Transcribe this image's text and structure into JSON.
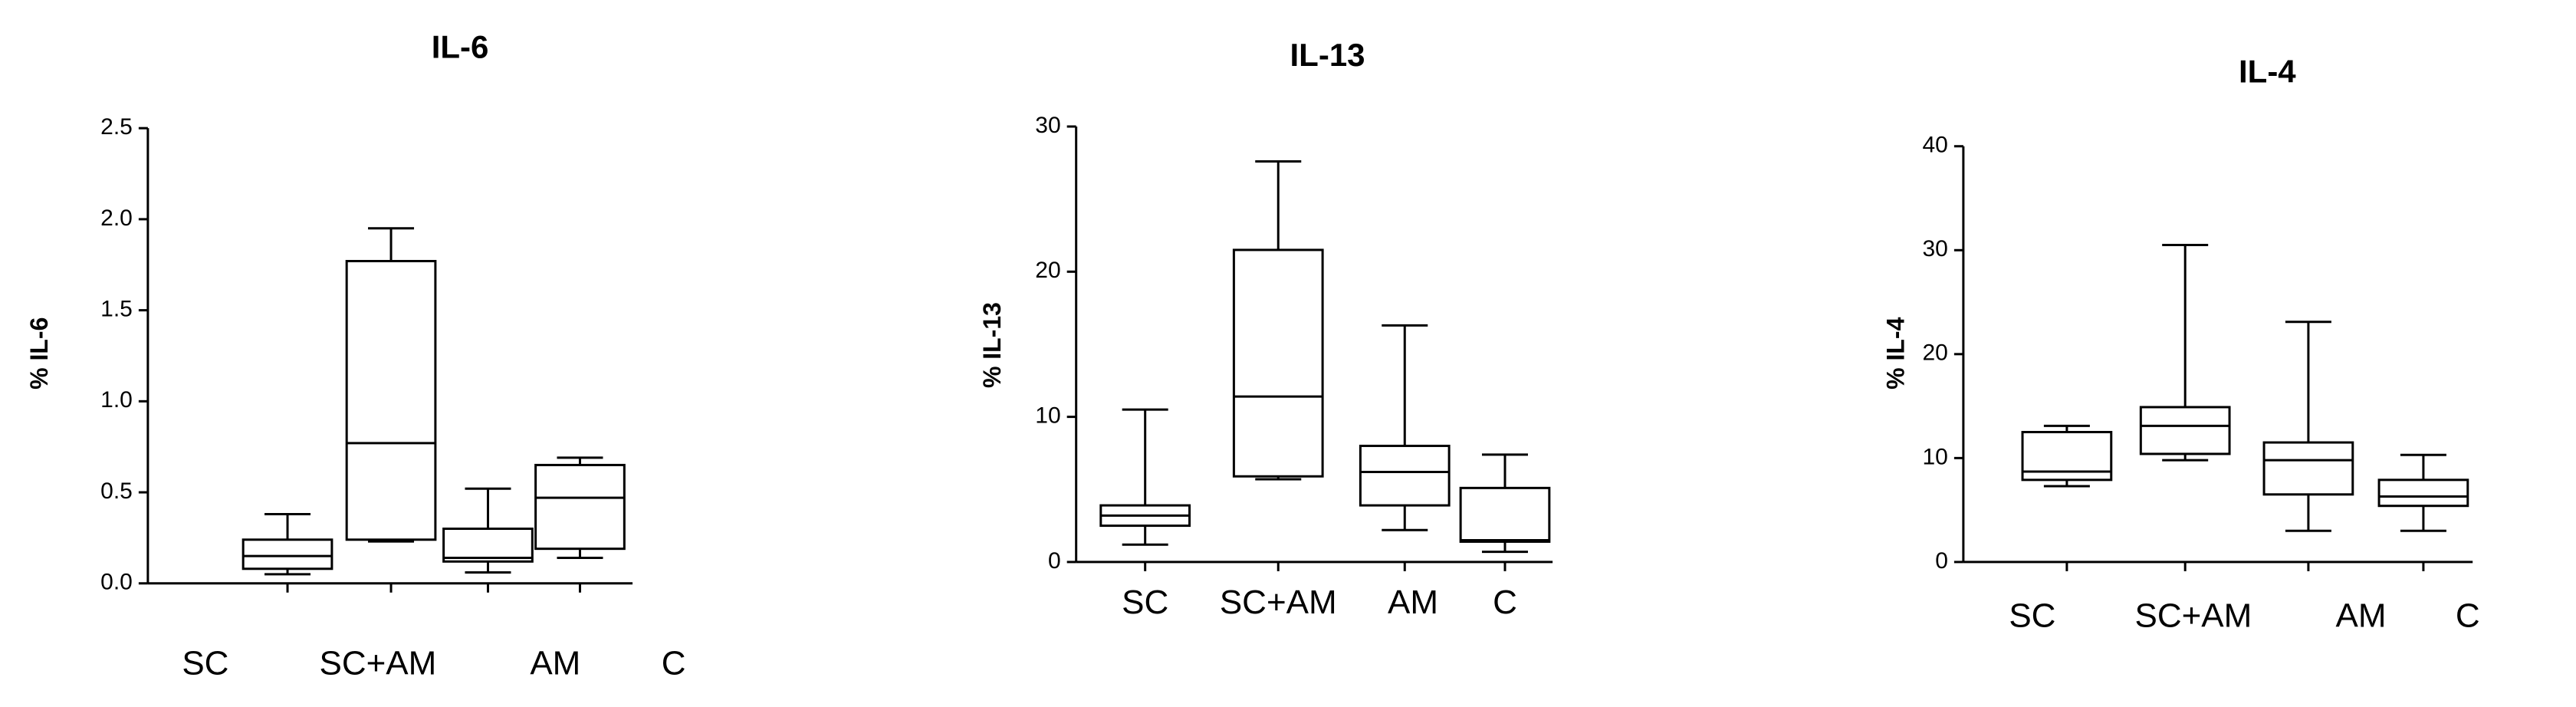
{
  "chart_data": [
    {
      "type": "box",
      "title": "IL-6",
      "y_label": "% IL-6",
      "categories": [
        "SC",
        "SC+AM",
        "AM",
        "C"
      ],
      "min": [
        0.05,
        0.23,
        0.06,
        0.14
      ],
      "q1": [
        0.08,
        0.24,
        0.12,
        0.19
      ],
      "median": [
        0.15,
        0.77,
        0.14,
        0.47
      ],
      "q3": [
        0.24,
        1.77,
        0.3,
        0.65
      ],
      "max": [
        0.38,
        1.95,
        0.52,
        0.69
      ],
      "ylim": [
        0,
        2.5
      ],
      "yticks": [
        {
          "value": 0,
          "label": "0.0"
        },
        0.5,
        {
          "value": 1,
          "label": "1.0"
        },
        1.5,
        {
          "value": 2,
          "label": "2.0"
        },
        2.5
      ]
    },
    {
      "type": "box",
      "title": "IL-13",
      "y_label": "% IL-13",
      "categories": [
        "SC",
        "SC+AM",
        "AM",
        "C"
      ],
      "min": [
        1.2,
        5.7,
        2.2,
        0.7
      ],
      "q1": [
        2.5,
        5.9,
        3.9,
        1.4
      ],
      "median": [
        3.2,
        11.4,
        6.2,
        1.5
      ],
      "q3": [
        3.9,
        21.5,
        8.0,
        5.1
      ],
      "max": [
        10.5,
        27.6,
        16.3,
        7.4
      ],
      "ylim": [
        0,
        30
      ],
      "yticks": [
        0,
        10,
        20,
        30
      ]
    },
    {
      "type": "box",
      "title": "IL-4",
      "y_label": "% IL-4",
      "categories": [
        "SC",
        "SC+AM",
        "AM",
        "C"
      ],
      "min": [
        7.3,
        9.8,
        3.0,
        3.0
      ],
      "q1": [
        7.9,
        10.4,
        6.5,
        5.4
      ],
      "median": [
        8.7,
        13.1,
        9.8,
        6.3
      ],
      "q3": [
        12.5,
        14.9,
        11.5,
        7.9
      ],
      "max": [
        13.1,
        30.5,
        23.1,
        10.3
      ],
      "ylim": [
        0,
        40
      ],
      "yticks": [
        0,
        10,
        20,
        30,
        40
      ]
    }
  ]
}
